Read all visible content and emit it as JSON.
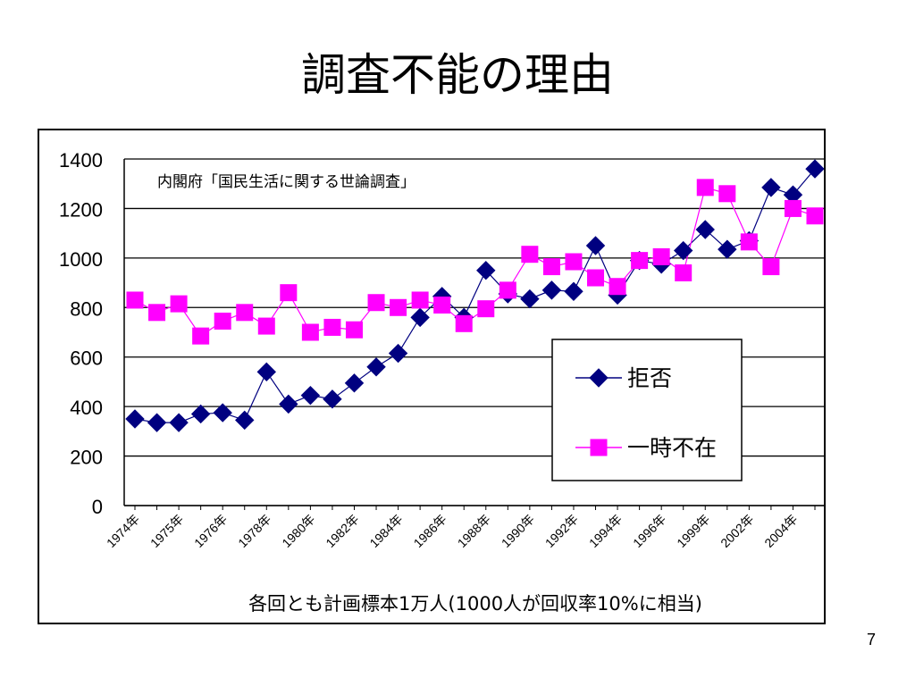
{
  "slide": {
    "title": "調査不能の理由",
    "page_number": "7"
  },
  "chart_data": {
    "type": "line",
    "annotation": "内閣府「国民生活に関する世論調査」",
    "xlabel": "各回とも計画標本1万人(1000人が回収率10%に相当)",
    "ylabel": "",
    "ylim": [
      0,
      1400
    ],
    "yticks": [
      "0",
      "200",
      "400",
      "600",
      "800",
      "1000",
      "1200",
      "1400"
    ],
    "xtick_labels": [
      "1974年",
      "1975年",
      "1976年",
      "1978年",
      "1980年",
      "1982年",
      "1984年",
      "1986年",
      "1988年",
      "1990年",
      "1992年",
      "1994年",
      "1996年",
      "1999年",
      "2002年",
      "2004年"
    ],
    "x": [
      1974,
      1975,
      1976,
      1977,
      1978,
      1979,
      1980,
      1981,
      1982,
      1983,
      1984,
      1985,
      1986,
      1987,
      1988,
      1989,
      1990,
      1991,
      1992,
      1993,
      1994,
      1995,
      1996,
      1997,
      1998,
      1999,
      2000,
      2001,
      2002,
      2003,
      2004,
      2005
    ],
    "grid": true,
    "legend_position": "bottom-right",
    "series": [
      {
        "name": "拒否",
        "marker": "diamond",
        "color": "#000080",
        "values": [
          350,
          335,
          335,
          370,
          375,
          345,
          540,
          410,
          445,
          430,
          495,
          560,
          615,
          760,
          845,
          760,
          950,
          855,
          835,
          870,
          865,
          1050,
          850,
          990,
          975,
          1030,
          1115,
          1035,
          1070,
          1285,
          1255,
          1360
        ]
      },
      {
        "name": "一時不在",
        "marker": "square",
        "color": "#ff00ff",
        "values": [
          830,
          780,
          815,
          685,
          745,
          780,
          725,
          860,
          700,
          720,
          710,
          820,
          800,
          830,
          810,
          735,
          795,
          870,
          1015,
          965,
          985,
          920,
          885,
          990,
          1005,
          940,
          1285,
          1260,
          1065,
          965,
          1200,
          1170
        ]
      }
    ]
  }
}
